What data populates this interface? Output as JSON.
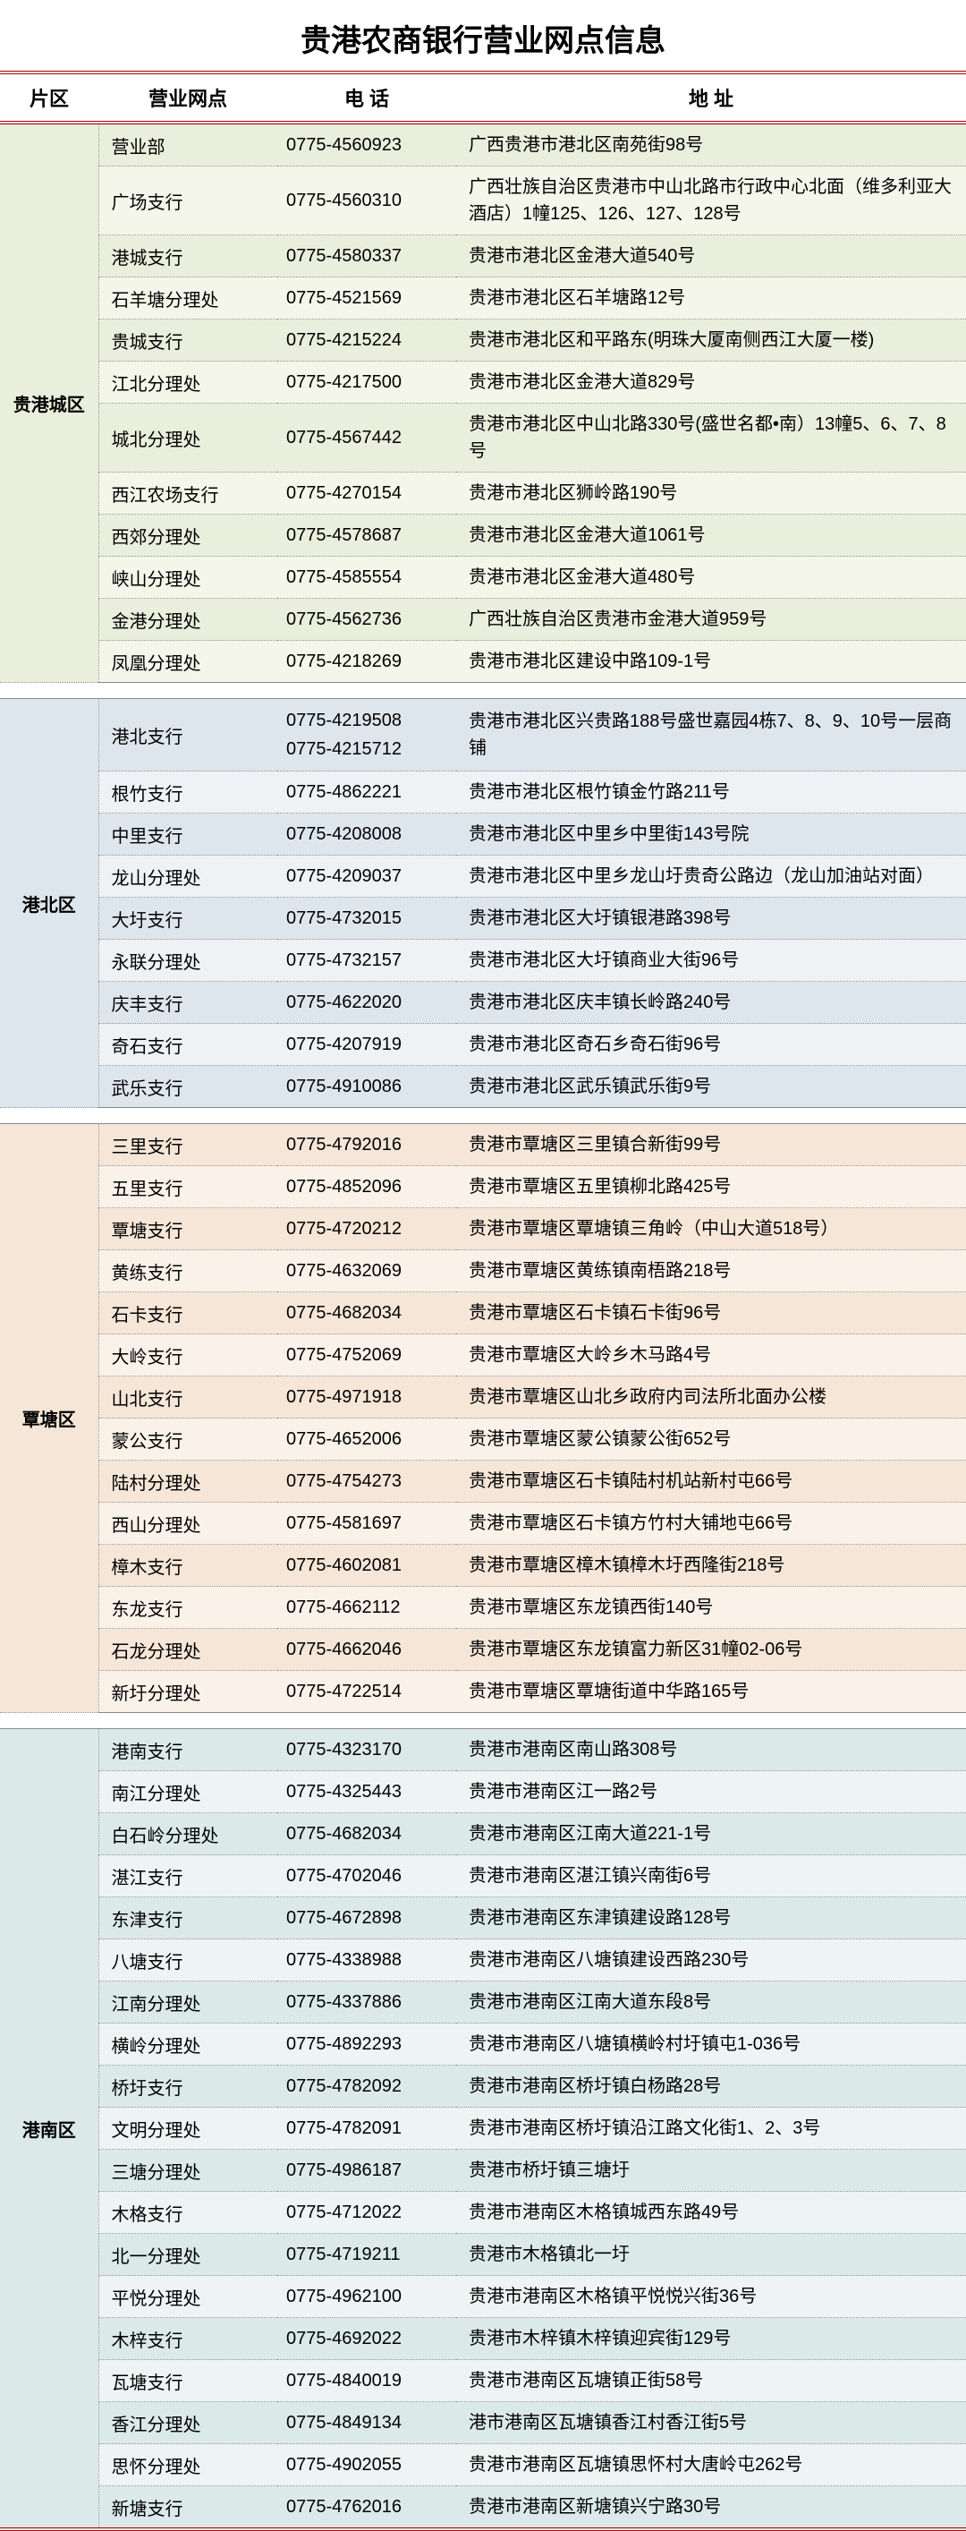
{
  "title": "贵港农商银行营业网点信息",
  "headers": {
    "area": "片区",
    "branch": "营业网点",
    "phone": "电 话",
    "address": "地 址"
  },
  "sections": [
    {
      "area": "贵港城区",
      "colorA": "bg-green-a",
      "colorB": "bg-green-b",
      "rows": [
        {
          "branch": "营业部",
          "phone": "0775-4560923",
          "addr": "广西贵港市港北区南苑街98号"
        },
        {
          "branch": "广场支行",
          "phone": "0775-4560310",
          "addr": "广西壮族自治区贵港市中山北路市行政中心北面（维多利亚大酒店）1幢125、126、127、128号"
        },
        {
          "branch": "港城支行",
          "phone": "0775-4580337",
          "addr": "贵港市港北区金港大道540号"
        },
        {
          "branch": "石羊塘分理处",
          "phone": "0775-4521569",
          "addr": "贵港市港北区石羊塘路12号"
        },
        {
          "branch": "贵城支行",
          "phone": "0775-4215224",
          "addr": "贵港市港北区和平路东(明珠大厦南侧西江大厦一楼)"
        },
        {
          "branch": "江北分理处",
          "phone": "0775-4217500",
          "addr": "贵港市港北区金港大道829号"
        },
        {
          "branch": "城北分理处",
          "phone": "0775-4567442",
          "addr": "贵港市港北区中山北路330号(盛世名都•南）13幢5、6、7、8号"
        },
        {
          "branch": "西江农场支行",
          "phone": "0775-4270154",
          "addr": "贵港市港北区狮岭路190号"
        },
        {
          "branch": "西郊分理处",
          "phone": "0775-4578687",
          "addr": "贵港市港北区金港大道1061号"
        },
        {
          "branch": "峡山分理处",
          "phone": "0775-4585554",
          "addr": "贵港市港北区金港大道480号"
        },
        {
          "branch": "金港分理处",
          "phone": "0775-4562736",
          "addr": "广西壮族自治区贵港市金港大道959号"
        },
        {
          "branch": "凤凰分理处",
          "phone": "0775-4218269",
          "addr": "贵港市港北区建设中路109-1号"
        }
      ]
    },
    {
      "area": "港北区",
      "colorA": "bg-blue-a",
      "colorB": "bg-blue-b",
      "rows": [
        {
          "branch": "港北支行",
          "phone": "0775-4219508\n0775-4215712",
          "addr": "贵港市港北区兴贵路188号盛世嘉园4栋7、8、9、10号一层商铺"
        },
        {
          "branch": "根竹支行",
          "phone": "0775-4862221",
          "addr": "贵港市港北区根竹镇金竹路211号"
        },
        {
          "branch": "中里支行",
          "phone": "0775-4208008",
          "addr": "贵港市港北区中里乡中里街143号院"
        },
        {
          "branch": "龙山分理处",
          "phone": "0775-4209037",
          "addr": "贵港市港北区中里乡龙山圩贵奇公路边（龙山加油站对面）"
        },
        {
          "branch": "大圩支行",
          "phone": "0775-4732015",
          "addr": "贵港市港北区大圩镇银港路398号"
        },
        {
          "branch": "永联分理处",
          "phone": "0775-4732157",
          "addr": "贵港市港北区大圩镇商业大街96号"
        },
        {
          "branch": "庆丰支行",
          "phone": "0775-4622020",
          "addr": "贵港市港北区庆丰镇长岭路240号"
        },
        {
          "branch": "奇石支行",
          "phone": "0775-4207919",
          "addr": "贵港市港北区奇石乡奇石街96号"
        },
        {
          "branch": "武乐支行",
          "phone": "0775-4910086",
          "addr": "贵港市港北区武乐镇武乐街9号"
        }
      ]
    },
    {
      "area": "覃塘区",
      "colorA": "bg-orange-a",
      "colorB": "bg-orange-b",
      "rows": [
        {
          "branch": "三里支行",
          "phone": "0775-4792016",
          "addr": "贵港市覃塘区三里镇合新街99号"
        },
        {
          "branch": "五里支行",
          "phone": "0775-4852096",
          "addr": "贵港市覃塘区五里镇柳北路425号"
        },
        {
          "branch": "覃塘支行",
          "phone": "0775-4720212",
          "addr": "贵港市覃塘区覃塘镇三角岭（中山大道518号）"
        },
        {
          "branch": "黄练支行",
          "phone": "0775-4632069",
          "addr": "贵港市覃塘区黄练镇南梧路218号"
        },
        {
          "branch": "石卡支行",
          "phone": "0775-4682034",
          "addr": "贵港市覃塘区石卡镇石卡街96号"
        },
        {
          "branch": "大岭支行",
          "phone": "0775-4752069",
          "addr": "贵港市覃塘区大岭乡木马路4号"
        },
        {
          "branch": "山北支行",
          "phone": "0775-4971918",
          "addr": "贵港市覃塘区山北乡政府内司法所北面办公楼"
        },
        {
          "branch": "蒙公支行",
          "phone": "0775-4652006",
          "addr": "贵港市覃塘区蒙公镇蒙公街652号"
        },
        {
          "branch": "陆村分理处",
          "phone": "0775-4754273",
          "addr": "贵港市覃塘区石卡镇陆村机站新村屯66号"
        },
        {
          "branch": "西山分理处",
          "phone": "0775-4581697",
          "addr": "贵港市覃塘区石卡镇方竹村大铺地屯66号"
        },
        {
          "branch": "樟木支行",
          "phone": "0775-4602081",
          "addr": "贵港市覃塘区樟木镇樟木圩西隆街218号"
        },
        {
          "branch": "东龙支行",
          "phone": "0775-4662112",
          "addr": "贵港市覃塘区东龙镇西街140号"
        },
        {
          "branch": "石龙分理处",
          "phone": "0775-4662046",
          "addr": "贵港市覃塘区东龙镇富力新区31幢02-06号"
        },
        {
          "branch": "新圩分理处",
          "phone": "0775-4722514",
          "addr": "贵港市覃塘区覃塘街道中华路165号"
        }
      ]
    },
    {
      "area": "港南区",
      "colorA": "bg-teal-a",
      "colorB": "bg-teal-b",
      "rows": [
        {
          "branch": "港南支行",
          "phone": "0775-4323170",
          "addr": "贵港市港南区南山路308号"
        },
        {
          "branch": "南江分理处",
          "phone": "0775-4325443",
          "addr": "贵港市港南区江一路2号"
        },
        {
          "branch": "白石岭分理处",
          "phone": "0775-4682034",
          "addr": "贵港市港南区江南大道221-1号"
        },
        {
          "branch": "湛江支行",
          "phone": "0775-4702046",
          "addr": "贵港市港南区湛江镇兴南街6号"
        },
        {
          "branch": "东津支行",
          "phone": "0775-4672898",
          "addr": "贵港市港南区东津镇建设路128号"
        },
        {
          "branch": "八塘支行",
          "phone": "0775-4338988",
          "addr": "贵港市港南区八塘镇建设西路230号"
        },
        {
          "branch": "江南分理处",
          "phone": "0775-4337886",
          "addr": "贵港市港南区江南大道东段8号"
        },
        {
          "branch": "横岭分理处",
          "phone": "0775-4892293",
          "addr": "贵港市港南区八塘镇横岭村圩镇屯1-036号"
        },
        {
          "branch": "桥圩支行",
          "phone": "0775-4782092",
          "addr": "贵港市港南区桥圩镇白杨路28号"
        },
        {
          "branch": "文明分理处",
          "phone": "0775-4782091",
          "addr": "贵港市港南区桥圩镇沿江路文化街1、2、3号"
        },
        {
          "branch": "三塘分理处",
          "phone": "0775-4986187",
          "addr": "贵港市桥圩镇三塘圩"
        },
        {
          "branch": "木格支行",
          "phone": "0775-4712022",
          "addr": "贵港市港南区木格镇城西东路49号"
        },
        {
          "branch": "北一分理处",
          "phone": "0775-4719211",
          "addr": "贵港市木格镇北一圩"
        },
        {
          "branch": "平悦分理处",
          "phone": "0775-4962100",
          "addr": "贵港市港南区木格镇平悦悦兴街36号"
        },
        {
          "branch": "木梓支行",
          "phone": "0775-4692022",
          "addr": "贵港市木梓镇木梓镇迎宾街129号"
        },
        {
          "branch": "瓦塘支行",
          "phone": "0775-4840019",
          "addr": "贵港市港南区瓦塘镇正街58号"
        },
        {
          "branch": "香江分理处",
          "phone": "0775-4849134",
          "addr": "港市港南区瓦塘镇香江村香江街5号"
        },
        {
          "branch": "思怀分理处",
          "phone": "0775-4902055",
          "addr": "贵港市港南区瓦塘镇思怀村大唐岭屯262号"
        },
        {
          "branch": "新塘支行",
          "phone": "0775-4762016",
          "addr": "贵港市港南区新塘镇兴宁路30号"
        }
      ]
    }
  ]
}
